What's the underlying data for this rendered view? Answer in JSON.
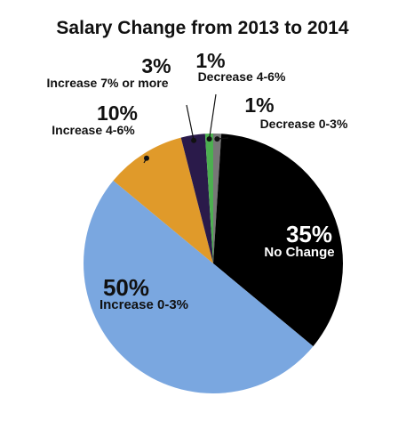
{
  "chart_data": {
    "type": "pie",
    "title": "Salary Change from 2013 to 2014",
    "slices": [
      {
        "label": "Decrease 0-3%",
        "value": 1,
        "value_label": "1%",
        "color": "#777777"
      },
      {
        "label": "No Change",
        "value": 35,
        "value_label": "35%",
        "color": "#000000"
      },
      {
        "label": "Increase 0-3%",
        "value": 50,
        "value_label": "50%",
        "color": "#7aa7e0"
      },
      {
        "label": "Increase 4-6%",
        "value": 10,
        "value_label": "10%",
        "color": "#e09a2a"
      },
      {
        "label": "Increase 7% or more",
        "value": 3,
        "value_label": "3%",
        "color": "#2a1a4a"
      },
      {
        "label": "Decrease 4-6%",
        "value": 1,
        "value_label": "1%",
        "color": "#4caf50"
      }
    ]
  }
}
